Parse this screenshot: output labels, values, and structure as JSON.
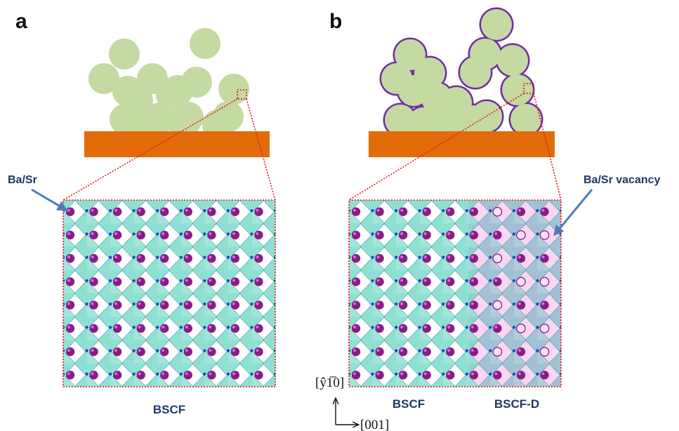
{
  "panels": {
    "a": {
      "letter": "a",
      "callout": "Ba/Sr",
      "lattice_caption": "BSCF"
    },
    "b": {
      "letter": "b",
      "callout": "Ba/Sr vacancy",
      "lattice_caption_left": "BSCF",
      "lattice_caption_right": "BSCF-D"
    }
  },
  "axes": {
    "vertical": "[ŷ1̅0]",
    "horizontal": "[001]"
  },
  "colors": {
    "particle_fill": "#c5d9a2",
    "particle_outline_b": "#7030a0",
    "substrate": "#e36c0a",
    "zoom_box": "#e01b1b",
    "octahedron": "#5fd3c0",
    "a_site_atom": "#8b1a8b",
    "oxygen_atom": "#1d3fcf",
    "vacancy_region": "#f7c8ec",
    "text_blue": "#1f3864",
    "arrow_blue": "#4a7ebb"
  },
  "lattice": {
    "a_columns": 9,
    "a_rows": 8,
    "b_columns": 9,
    "b_rows": 8,
    "b_defect_start_column": 6
  }
}
